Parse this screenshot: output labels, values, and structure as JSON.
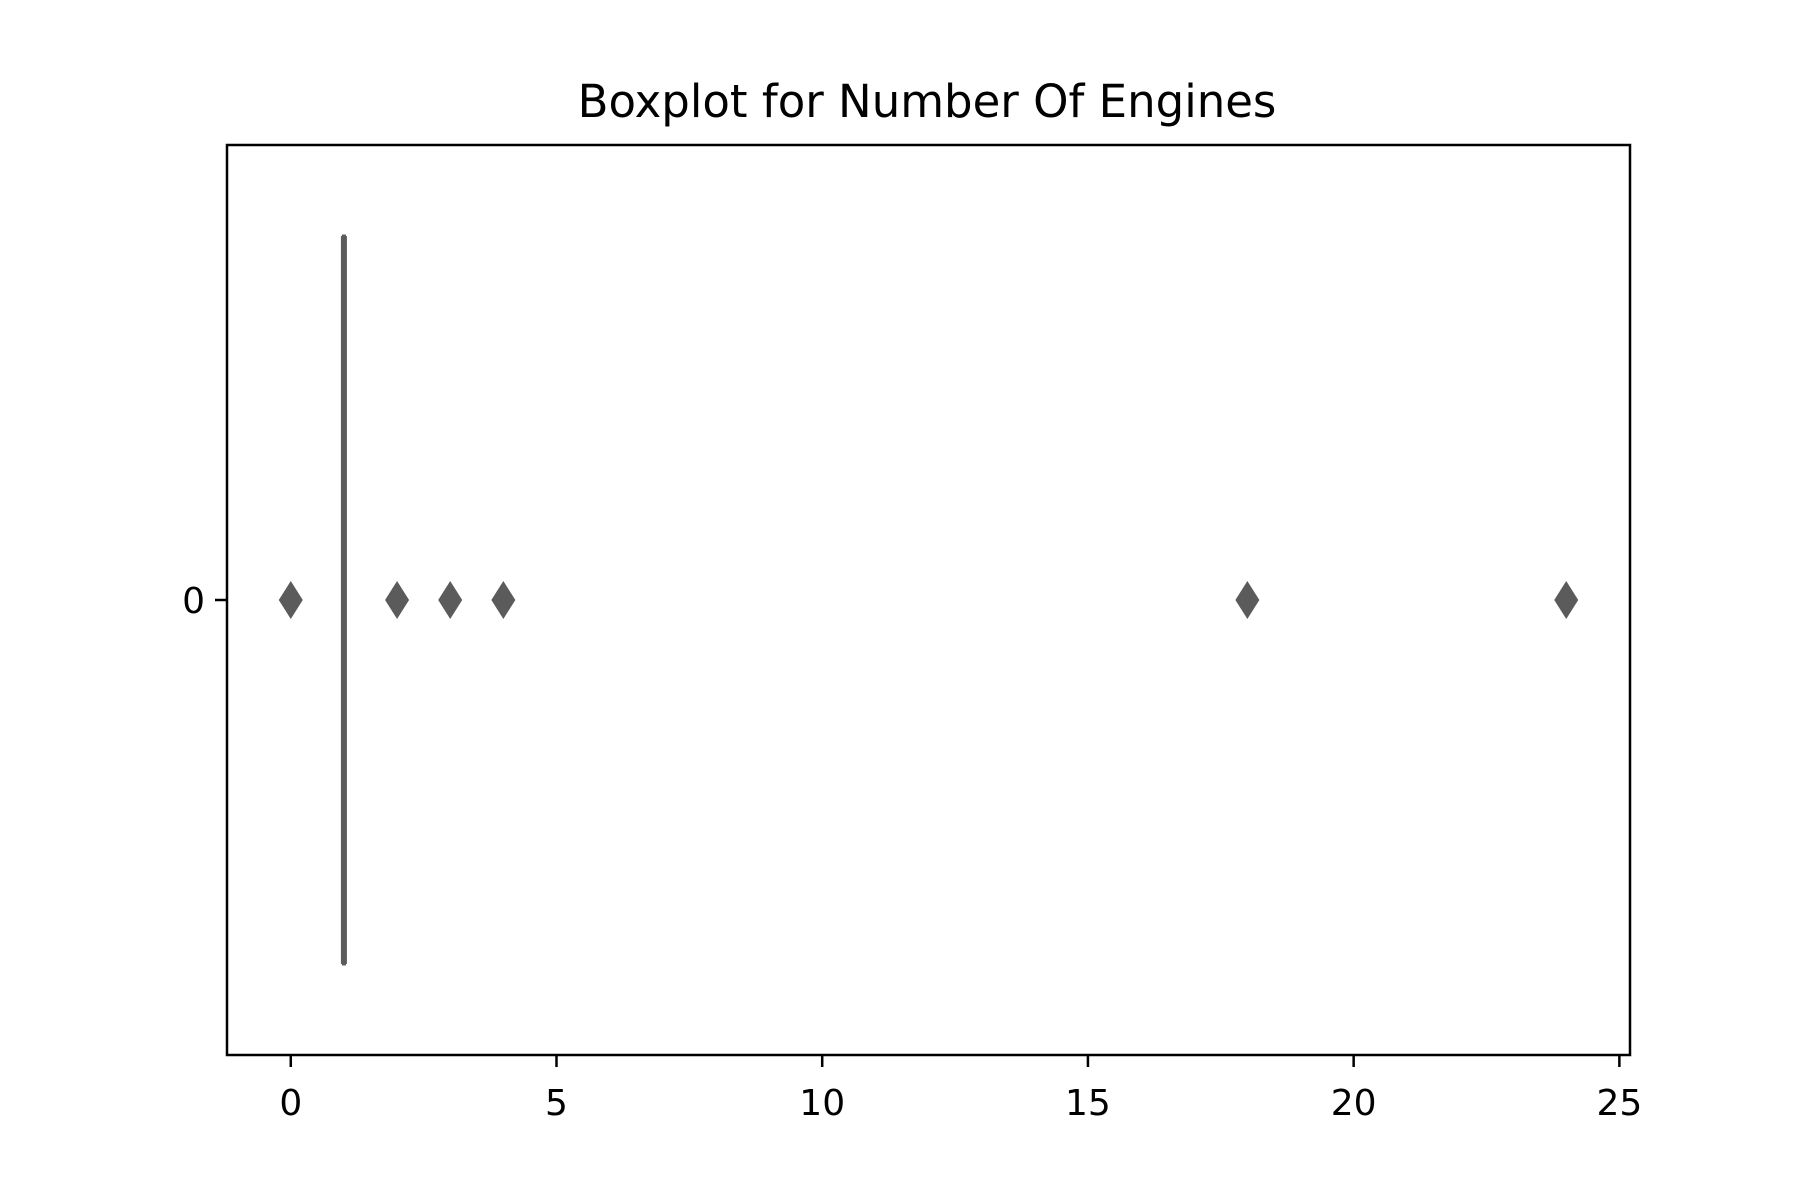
{
  "chart_data": {
    "type": "boxplot",
    "orientation": "horizontal",
    "title": "Boxplot for Number Of Engines",
    "xlabel": "",
    "ylabel": "",
    "xlim": [
      -1.2,
      25.2
    ],
    "x_ticks": [
      0,
      5,
      10,
      15,
      20,
      25
    ],
    "x_tick_labels": [
      "0",
      "5",
      "10",
      "15",
      "20",
      "25"
    ],
    "categories": [
      "0"
    ],
    "series": [
      {
        "category": "0",
        "q1": 1,
        "median": 1,
        "q3": 1,
        "whisker_low": 1,
        "whisker_high": 1,
        "outliers": [
          0,
          2,
          3,
          4,
          18,
          24
        ]
      }
    ],
    "grid": false,
    "legend": "none",
    "colors": {
      "box": "#5b5b5b",
      "outlier": "#5b5b5b",
      "axes": "#000000"
    }
  }
}
